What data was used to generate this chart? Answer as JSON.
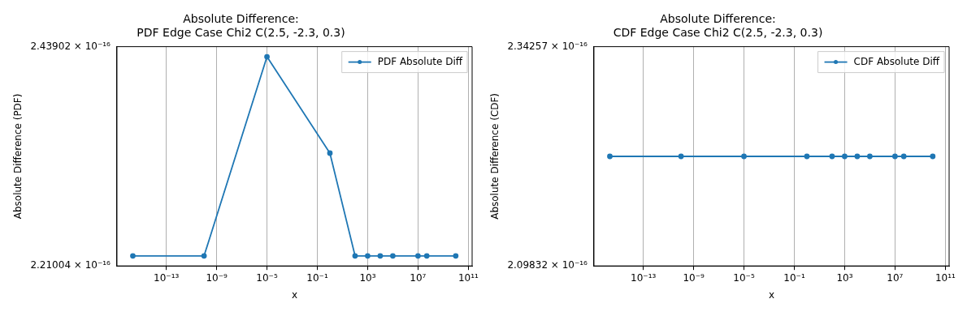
{
  "chart_data": [
    {
      "type": "line",
      "title": "Absolute Difference:\nPDF Edge Case Chi2 C(2.5, -2.3, 0.3)",
      "xlabel": "x",
      "ylabel": "Absolute Difference (PDF)",
      "x": [
        2.2e-16,
        1e-10,
        1e-05,
        1,
        100,
        1000,
        10000,
        100000,
        10000000,
        50000000,
        10000000000
      ],
      "series": [
        {
          "name": "PDF Absolute Diff",
          "color": "#1f77b4",
          "values": [
            2.22e-16,
            2.22e-16,
            2.428e-16,
            2.325e-16,
            2.22e-16,
            2.22e-16,
            2.22e-16,
            2.22e-16,
            2.22e-16,
            2.22e-16,
            2.22e-16
          ]
        }
      ],
      "log": "xy",
      "xlim": [
        1.2e-17,
        200000000000.0
      ],
      "ylim": [
        2.21004e-16,
        2.43902e-16
      ],
      "xticks": [
        {
          "value": 1e-13,
          "label": "10⁻¹³"
        },
        {
          "value": 1e-09,
          "label": "10⁻⁹"
        },
        {
          "value": 1e-05,
          "label": "10⁻⁵"
        },
        {
          "value": 0.1,
          "label": "10⁻¹"
        },
        {
          "value": 1000,
          "label": "10³"
        },
        {
          "value": 10000000,
          "label": "10⁷"
        },
        {
          "value": 100000000000,
          "label": "10¹¹"
        }
      ],
      "yticks": [
        {
          "value": 2.21004e-16,
          "label": "2.21004 × 10⁻¹⁶"
        },
        {
          "value": 2.43902e-16,
          "label": "2.43902 × 10⁻¹⁶"
        }
      ],
      "grid": "x",
      "legend": "top right",
      "marker": "circle",
      "line_style": "solid"
    },
    {
      "type": "line",
      "title": "Absolute Difference:\nCDF Edge Case Chi2 C(2.5, -2.3, 0.3)",
      "xlabel": "x",
      "ylabel": "Absolute Difference (CDF)",
      "x": [
        2.2e-16,
        1e-10,
        1e-05,
        1,
        100,
        1000,
        10000,
        100000,
        10000000,
        50000000,
        10000000000
      ],
      "series": [
        {
          "name": "CDF Absolute Diff",
          "color": "#1f77b4",
          "values": [
            2.217e-16,
            2.217e-16,
            2.217e-16,
            2.217e-16,
            2.217e-16,
            2.217e-16,
            2.217e-16,
            2.217e-16,
            2.217e-16,
            2.217e-16,
            2.217e-16
          ]
        }
      ],
      "log": "xy",
      "xlim": [
        1.2e-17,
        200000000000.0
      ],
      "ylim": [
        2.09832e-16,
        2.34257e-16
      ],
      "xticks": [
        {
          "value": 1e-13,
          "label": "10⁻¹³"
        },
        {
          "value": 1e-09,
          "label": "10⁻⁹"
        },
        {
          "value": 1e-05,
          "label": "10⁻⁵"
        },
        {
          "value": 0.1,
          "label": "10⁻¹"
        },
        {
          "value": 1000,
          "label": "10³"
        },
        {
          "value": 10000000,
          "label": "10⁷"
        },
        {
          "value": 100000000000,
          "label": "10¹¹"
        }
      ],
      "yticks": [
        {
          "value": 2.09832e-16,
          "label": "2.09832 × 10⁻¹⁶"
        },
        {
          "value": 2.34257e-16,
          "label": "2.34257 × 10⁻¹⁶"
        }
      ],
      "grid": "x",
      "legend": "top right",
      "marker": "circle",
      "line_style": "solid"
    }
  ]
}
